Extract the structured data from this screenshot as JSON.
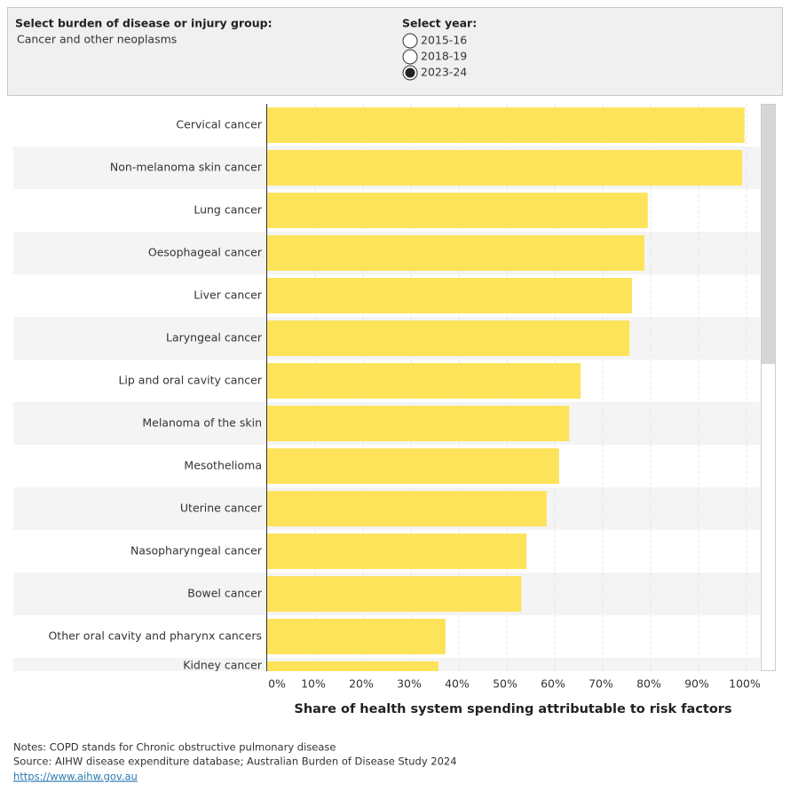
{
  "filters": {
    "group_label": "Select burden of disease or injury group:",
    "group_value": "Cancer and other neoplasms",
    "year_label": "Select year:",
    "years": [
      "2015-16",
      "2018-19",
      "2023-24"
    ],
    "selected": 2
  },
  "chart_data": {
    "type": "bar",
    "orientation": "horizontal",
    "categories": [
      "Cervical cancer",
      "Non-melanoma skin cancer",
      "Lung cancer",
      "Oesophageal cancer",
      "Liver cancer",
      "Laryngeal cancer",
      "Lip and oral cavity cancer",
      "Melanoma of the skin",
      "Mesothelioma",
      "Uterine cancer",
      "Nasopharyngeal cancer",
      "Bowel cancer",
      "Other oral cavity and pharynx cancers",
      "Kidney cancer"
    ],
    "values": [
      99.6,
      99.1,
      79.4,
      78.7,
      76.1,
      75.6,
      65.4,
      63.0,
      60.9,
      58.3,
      54.1,
      53.0,
      37.2,
      35.7
    ],
    "color": "#fde35a",
    "xlabel": "Share of health system spending attributable to risk factors",
    "xlim": [
      0,
      100
    ],
    "xticks": [
      {
        "value": 0,
        "label": "0%"
      },
      {
        "value": 10,
        "label": "10%"
      },
      {
        "value": 20,
        "label": "20%"
      },
      {
        "value": 30,
        "label": "30%"
      },
      {
        "value": 40,
        "label": "40%"
      },
      {
        "value": 50,
        "label": "50%"
      },
      {
        "value": 60,
        "label": "60%"
      },
      {
        "value": 70,
        "label": "70%"
      },
      {
        "value": 80,
        "label": "80%"
      },
      {
        "value": 90,
        "label": "90%"
      },
      {
        "value": 100,
        "label": "100%"
      }
    ],
    "grid": true
  },
  "notes": [
    "Notes: COPD stands for Chronic obstructive pulmonary disease",
    "Source:  AIHW disease expenditure database; Australian Burden of Disease Study 2024"
  ],
  "link": "https://www.aihw.gov.au"
}
